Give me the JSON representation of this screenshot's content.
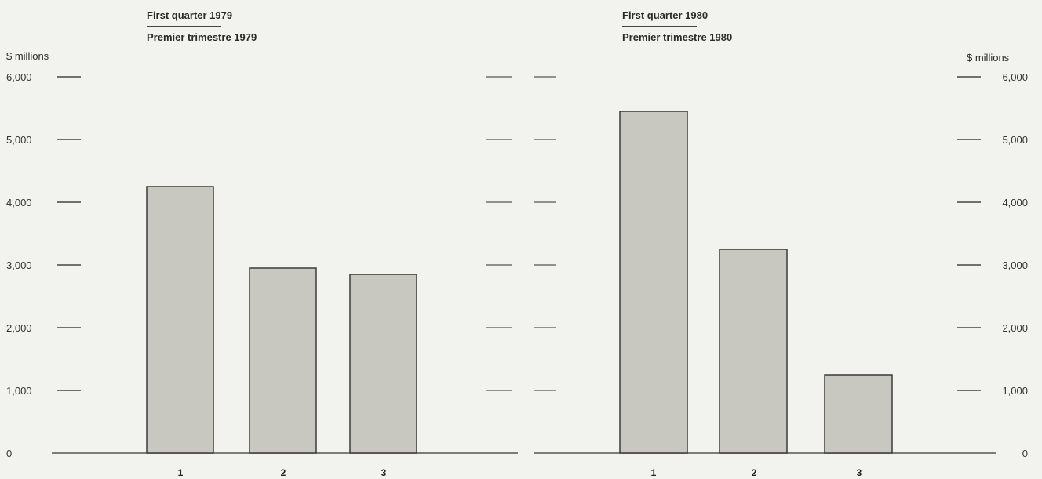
{
  "chart_data": [
    {
      "type": "bar",
      "title": "First quarter 1979",
      "subtitle": "Premier trimestre 1979",
      "ylabel": "$ millions",
      "categories": [
        "1",
        "2",
        "3"
      ],
      "values": [
        4250,
        2950,
        2850
      ],
      "ylim": [
        0,
        6000
      ],
      "yticks": [
        0,
        1000,
        2000,
        3000,
        4000,
        5000,
        6000
      ],
      "ytick_labels": [
        "0",
        "1,000",
        "2,000",
        "3,000",
        "4,000",
        "5,000",
        "6,000"
      ],
      "axis_side": "left",
      "grid": false,
      "bar_color": "#c8c8c0"
    },
    {
      "type": "bar",
      "title": "First quarter 1980",
      "subtitle": "Premier trimestre 1980",
      "ylabel": "$ millions",
      "categories": [
        "1",
        "2",
        "3"
      ],
      "values": [
        5450,
        3250,
        1250
      ],
      "ylim": [
        0,
        6000
      ],
      "yticks": [
        0,
        1000,
        2000,
        3000,
        4000,
        5000,
        6000
      ],
      "ytick_labels": [
        "0",
        "1,000",
        "2,000",
        "3,000",
        "4,000",
        "5,000",
        "6,000"
      ],
      "axis_side": "right",
      "grid": false,
      "bar_color": "#c8c8c0"
    }
  ]
}
